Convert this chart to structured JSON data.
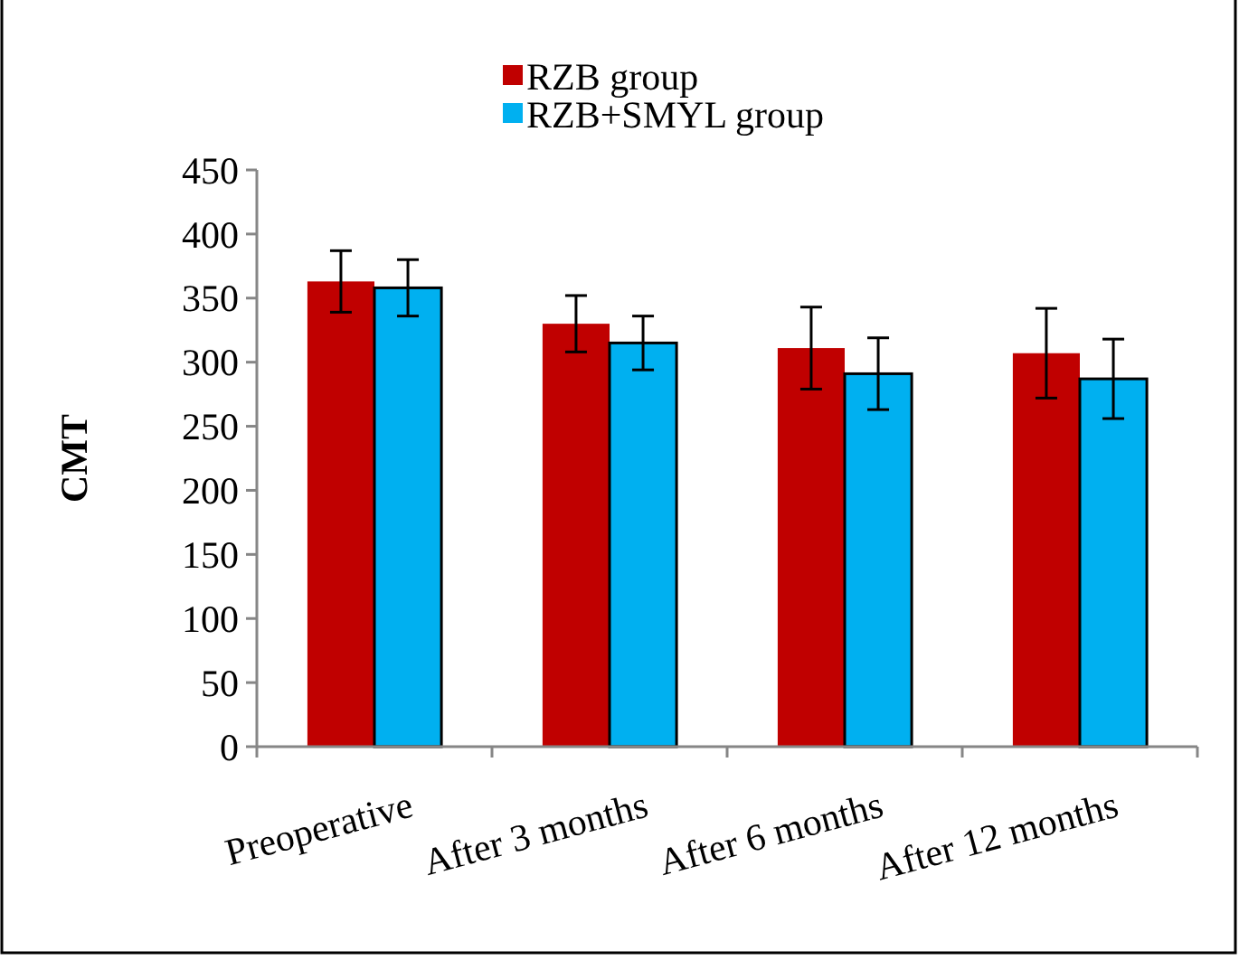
{
  "chart_data": {
    "type": "bar",
    "ylabel": "CMT",
    "categories": [
      "Preoperative",
      "After 3 months",
      "After 6 months",
      "After 12 months"
    ],
    "series": [
      {
        "name": "RZB group",
        "color": "#c00000",
        "values": [
          363,
          330,
          311,
          307
        ],
        "errors": [
          24,
          22,
          32,
          35
        ]
      },
      {
        "name": "RZB+SMYL group",
        "color": "#00b0f0",
        "values": [
          358,
          315,
          291,
          287
        ],
        "errors": [
          22,
          21,
          28,
          31
        ]
      }
    ],
    "ylim": [
      0,
      450
    ],
    "yticks": [
      0,
      50,
      100,
      150,
      200,
      250,
      300,
      350,
      400,
      450
    ],
    "grid": false,
    "legend": "top"
  }
}
